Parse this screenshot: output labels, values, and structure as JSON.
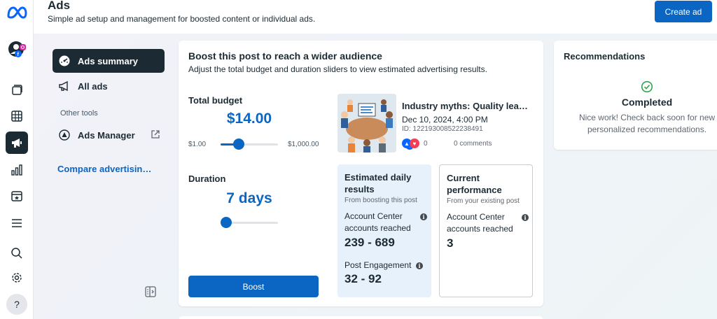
{
  "header": {
    "title": "Ads",
    "subtitle": "Simple ad setup and management for boosted content or individual ads.",
    "create_button": "Create ad"
  },
  "rail": {
    "icons": [
      "meta-logo-icon",
      "account-avatar-icon",
      "pages-icon",
      "grid-icon",
      "megaphone-icon",
      "insights-icon",
      "calendar-icon",
      "menu-icon",
      "search-icon",
      "settings-icon",
      "help-icon"
    ],
    "active": "megaphone-icon"
  },
  "subnav": {
    "items": [
      {
        "label": "Ads summary",
        "icon": "gauge-icon",
        "active": true
      },
      {
        "label": "All ads",
        "icon": "megaphone-icon",
        "active": false
      }
    ],
    "other_tools_label": "Other tools",
    "tools": [
      {
        "label": "Ads Manager",
        "icon": "ads-manager-icon"
      }
    ],
    "compare_link": "Compare advertisin…"
  },
  "boost": {
    "title": "Boost this post to reach a wider audience",
    "subtitle": "Adjust the total budget and duration sliders to view estimated advertising results.",
    "budget_label": "Total budget",
    "budget_value": "$14.00",
    "budget_min": "$1.00",
    "budget_max": "$1,000.00",
    "budget_fraction": 0.32,
    "duration_label": "Duration",
    "duration_value": "7 days",
    "duration_fraction": 0.05,
    "boost_button": "Boost"
  },
  "post": {
    "title": "Industry myths: Quality lea…",
    "date": "Dec 10, 2024, 4:00 PM",
    "id": "ID: 122193008522238491",
    "reactions": "0",
    "comments": "0 comments"
  },
  "estimated": {
    "title": "Estimated daily results",
    "from": "From boosting this post",
    "metric1_label": "Account Center accounts reached",
    "metric1_value": "239 - 689",
    "metric2_label": "Post Engagement",
    "metric2_value": "32 - 92"
  },
  "current": {
    "title": "Current performance",
    "from": "From your existing post",
    "metric1_label": "Account Center accounts reached",
    "metric1_value": "3"
  },
  "recommendations": {
    "title": "Recommendations",
    "status": "Completed",
    "message": "Nice work! Check back soon for new personalized recommendations."
  },
  "colors": {
    "accent": "#0a66c2",
    "dark": "#1c2b33",
    "estimate_bg": "#e6f1fb",
    "success": "#31a24c"
  }
}
